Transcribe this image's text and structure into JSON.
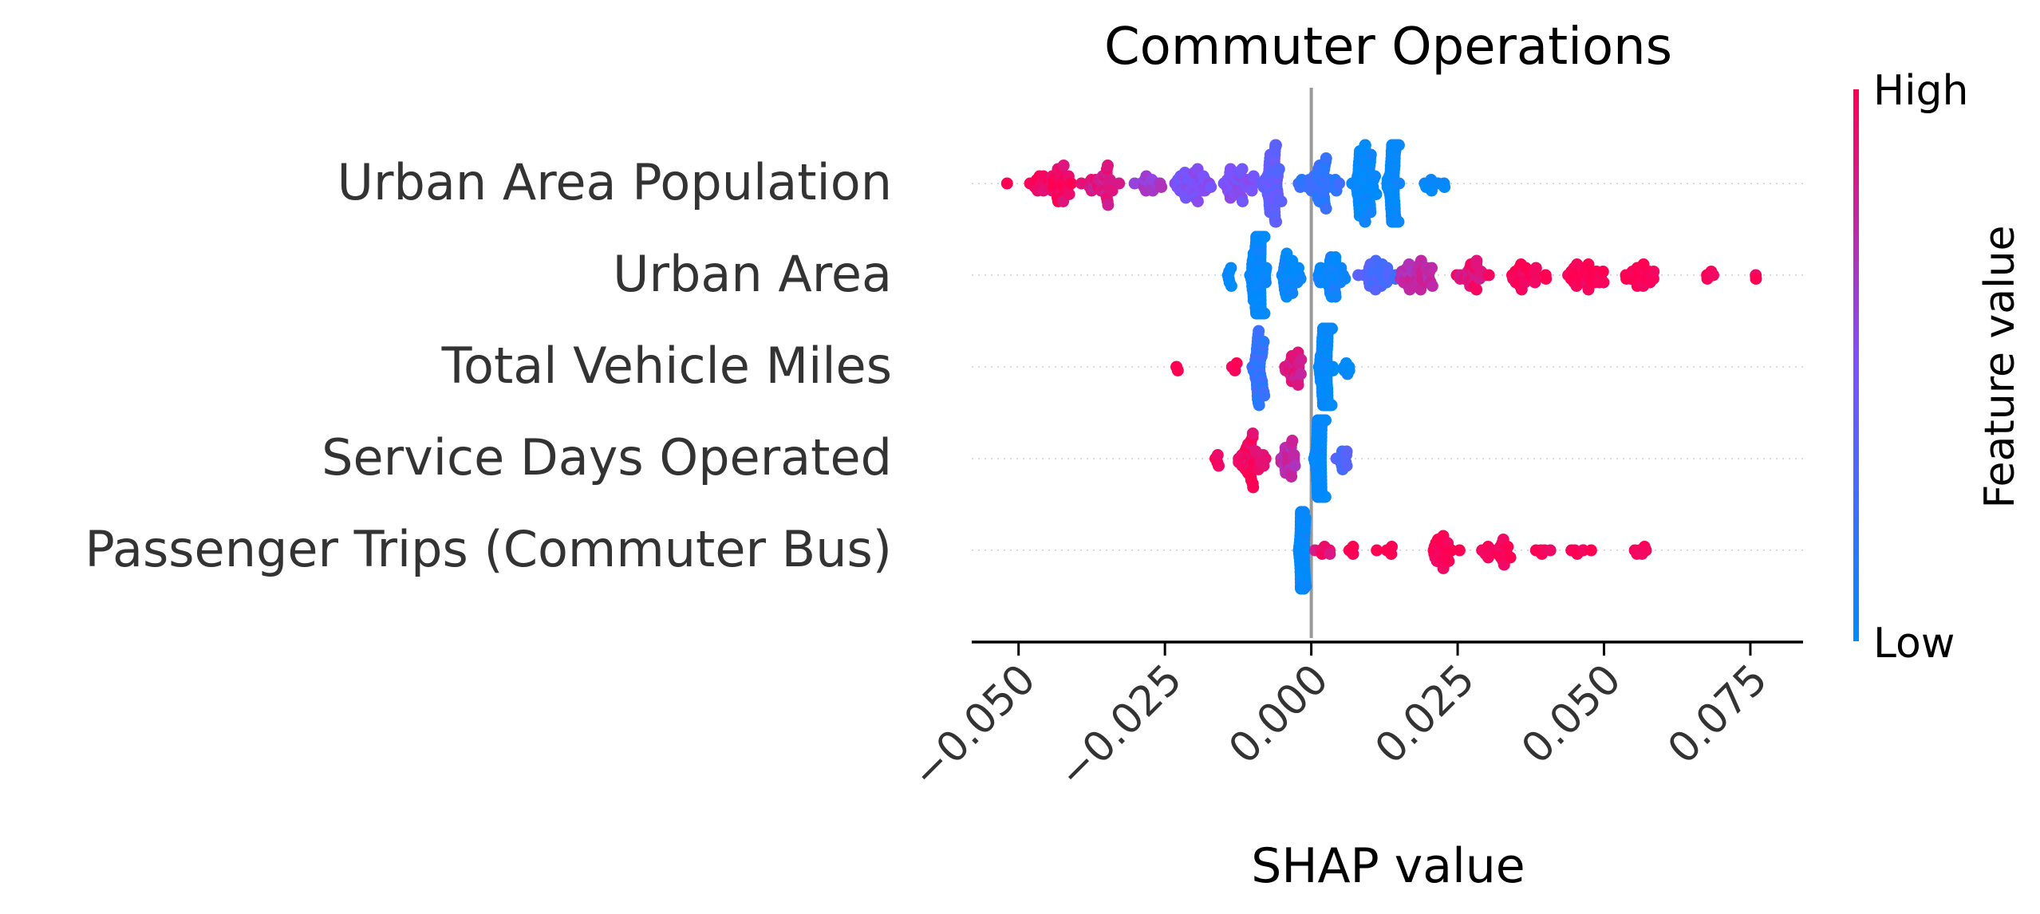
{
  "chart_data": {
    "type": "scatter",
    "subtype": "beeswarm",
    "title": "Commuter Operations",
    "xlabel": "SHAP value",
    "colorbar": {
      "label": "Feature value",
      "high_label": "High",
      "low_label": "Low",
      "high_color": "#ff0052",
      "low_color": "#008bfb"
    },
    "xlim": [
      -0.058,
      0.084
    ],
    "xticks": [
      {
        "value": -0.05,
        "label": "−0.050"
      },
      {
        "value": -0.025,
        "label": "−0.025"
      },
      {
        "value": 0.0,
        "label": "0.000"
      },
      {
        "value": 0.025,
        "label": "0.025"
      },
      {
        "value": 0.05,
        "label": "0.050"
      },
      {
        "value": 0.075,
        "label": "0.075"
      }
    ],
    "features": [
      {
        "name": "Urban Area Population",
        "clusters": [
          {
            "center": -0.052,
            "spread": 0.0005,
            "count": 1,
            "color": 1.0
          },
          {
            "center": -0.047,
            "spread": 0.002,
            "count": 12,
            "color": 0.98
          },
          {
            "center": -0.043,
            "spread": 0.003,
            "count": 34,
            "color": 0.95
          },
          {
            "center": -0.036,
            "spread": 0.004,
            "count": 30,
            "color": 0.85
          },
          {
            "center": -0.028,
            "spread": 0.003,
            "count": 14,
            "color": 0.65
          },
          {
            "center": -0.02,
            "spread": 0.004,
            "count": 40,
            "color": 0.5
          },
          {
            "center": -0.013,
            "spread": 0.004,
            "count": 36,
            "color": 0.5
          },
          {
            "center": -0.0065,
            "spread": 0.0015,
            "count": 55,
            "color": 0.4
          },
          {
            "center": 0.0015,
            "spread": 0.004,
            "count": 45,
            "color": 0.2
          },
          {
            "center": 0.009,
            "spread": 0.002,
            "count": 70,
            "color": 0.0
          },
          {
            "center": 0.014,
            "spread": 0.0012,
            "count": 80,
            "color": 0.0
          },
          {
            "center": 0.021,
            "spread": 0.003,
            "count": 10,
            "color": 0.0
          }
        ]
      },
      {
        "name": "Urban Area",
        "clusters": [
          {
            "center": -0.014,
            "spread": 0.0008,
            "count": 6,
            "color": 0.0
          },
          {
            "center": -0.009,
            "spread": 0.0015,
            "count": 150,
            "color": 0.0
          },
          {
            "center": -0.004,
            "spread": 0.0025,
            "count": 30,
            "color": 0.0
          },
          {
            "center": 0.003,
            "spread": 0.003,
            "count": 40,
            "color": 0.05
          },
          {
            "center": 0.011,
            "spread": 0.004,
            "count": 35,
            "color": 0.3
          },
          {
            "center": 0.018,
            "spread": 0.004,
            "count": 35,
            "color": 0.75
          },
          {
            "center": 0.027,
            "spread": 0.004,
            "count": 25,
            "color": 0.9
          },
          {
            "center": 0.037,
            "spread": 0.004,
            "count": 25,
            "color": 1.0
          },
          {
            "center": 0.047,
            "spread": 0.004,
            "count": 35,
            "color": 1.0
          },
          {
            "center": 0.056,
            "spread": 0.003,
            "count": 25,
            "color": 1.0
          },
          {
            "center": 0.068,
            "spread": 0.0015,
            "count": 4,
            "color": 1.0
          },
          {
            "center": 0.076,
            "spread": 0.0005,
            "count": 2,
            "color": 1.0
          }
        ]
      },
      {
        "name": "Total Vehicle Miles",
        "clusters": [
          {
            "center": -0.023,
            "spread": 0.001,
            "count": 2,
            "color": 1.0
          },
          {
            "center": -0.013,
            "spread": 0.0008,
            "count": 3,
            "color": 1.0
          },
          {
            "center": -0.009,
            "spread": 0.0012,
            "count": 40,
            "color": 0.2
          },
          {
            "center": -0.003,
            "spread": 0.002,
            "count": 25,
            "color": 0.85
          },
          {
            "center": 0.0025,
            "spread": 0.0012,
            "count": 150,
            "color": 0.0
          },
          {
            "center": 0.006,
            "spread": 0.0008,
            "count": 6,
            "color": 0.0
          }
        ]
      },
      {
        "name": "Service Days Operated",
        "clusters": [
          {
            "center": -0.016,
            "spread": 0.0008,
            "count": 4,
            "color": 1.0
          },
          {
            "center": -0.01,
            "spread": 0.003,
            "count": 40,
            "color": 0.95
          },
          {
            "center": -0.004,
            "spread": 0.002,
            "count": 25,
            "color": 0.75
          },
          {
            "center": 0.0015,
            "spread": 0.0012,
            "count": 140,
            "color": 0.0
          },
          {
            "center": 0.0055,
            "spread": 0.0012,
            "count": 12,
            "color": 0.3
          }
        ]
      },
      {
        "name": "Passenger Trips (Commuter Bus)",
        "clusters": [
          {
            "center": -0.0015,
            "spread": 0.0006,
            "count": 150,
            "color": 0.0
          },
          {
            "center": 0.002,
            "spread": 0.0015,
            "count": 6,
            "color": 0.9
          },
          {
            "center": 0.007,
            "spread": 0.001,
            "count": 3,
            "color": 1.0
          },
          {
            "center": 0.013,
            "spread": 0.002,
            "count": 5,
            "color": 1.0
          },
          {
            "center": 0.022,
            "spread": 0.003,
            "count": 25,
            "color": 1.0
          },
          {
            "center": 0.032,
            "spread": 0.003,
            "count": 20,
            "color": 1.0
          },
          {
            "center": 0.04,
            "spread": 0.002,
            "count": 5,
            "color": 1.0
          },
          {
            "center": 0.046,
            "spread": 0.002,
            "count": 6,
            "color": 1.0
          },
          {
            "center": 0.056,
            "spread": 0.0015,
            "count": 6,
            "color": 1.0
          }
        ]
      }
    ]
  }
}
